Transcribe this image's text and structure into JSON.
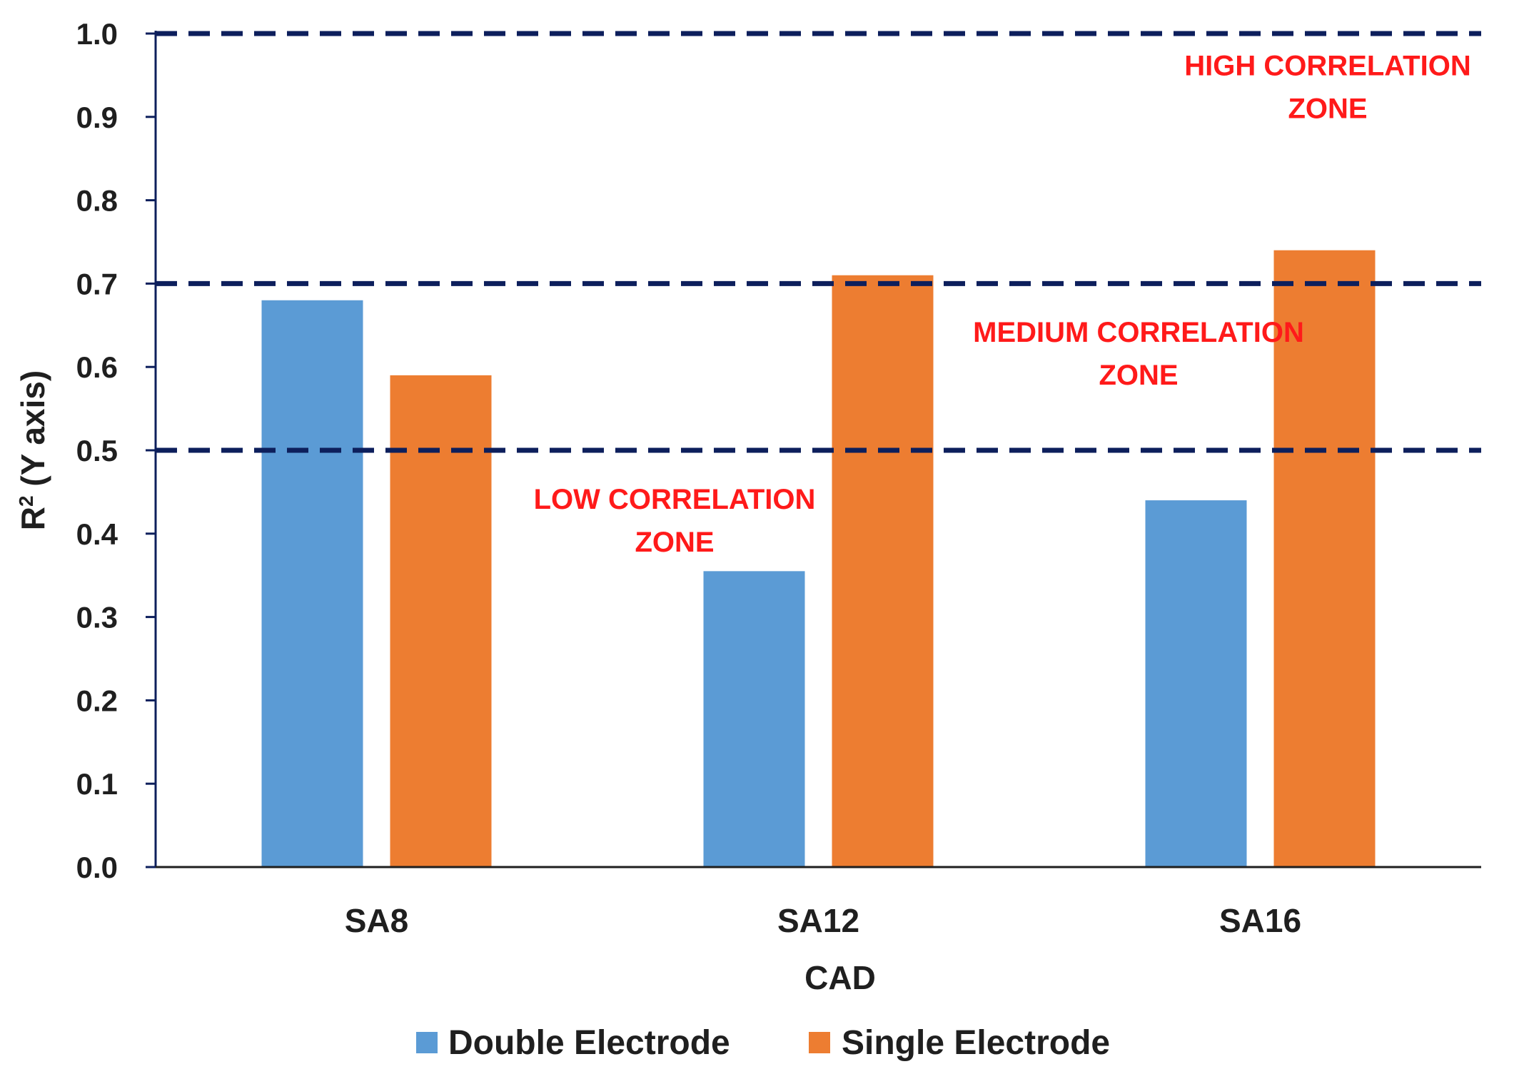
{
  "chart_data": {
    "type": "bar",
    "title": "",
    "xlabel": "CAD",
    "ylabel": "R² (Y axis)",
    "ylim": [
      0,
      1.0
    ],
    "ytick_step": 0.1,
    "grid": false,
    "legend_position": "bottom",
    "categories": [
      "SA8",
      "SA12",
      "SA16"
    ],
    "series": [
      {
        "name": "Double Electrode",
        "color": "#5b9bd5",
        "values": [
          0.68,
          0.355,
          0.44
        ]
      },
      {
        "name": "Single Electrode",
        "color": "#ed7d31",
        "values": [
          0.59,
          0.71,
          0.74
        ]
      }
    ],
    "reference_lines": [
      {
        "y": 1.0,
        "style": "dashed",
        "color": "#0d1f5c"
      },
      {
        "y": 0.7,
        "style": "dashed",
        "color": "#0d1f5c"
      },
      {
        "y": 0.5,
        "style": "dashed",
        "color": "#0d1f5c"
      }
    ],
    "annotations": [
      {
        "lines": [
          "HIGH CORRELATION",
          "ZONE"
        ],
        "near_y": 0.95,
        "placement": "top-right",
        "color": "#ff1a1a"
      },
      {
        "lines": [
          "MEDIUM CORRELATION",
          "ZONE"
        ],
        "near_y": 0.63,
        "placement": "right",
        "color": "#ff1a1a"
      },
      {
        "lines": [
          "LOW CORRELATION",
          "ZONE"
        ],
        "near_y": 0.43,
        "placement": "center",
        "color": "#ff1a1a"
      }
    ]
  }
}
